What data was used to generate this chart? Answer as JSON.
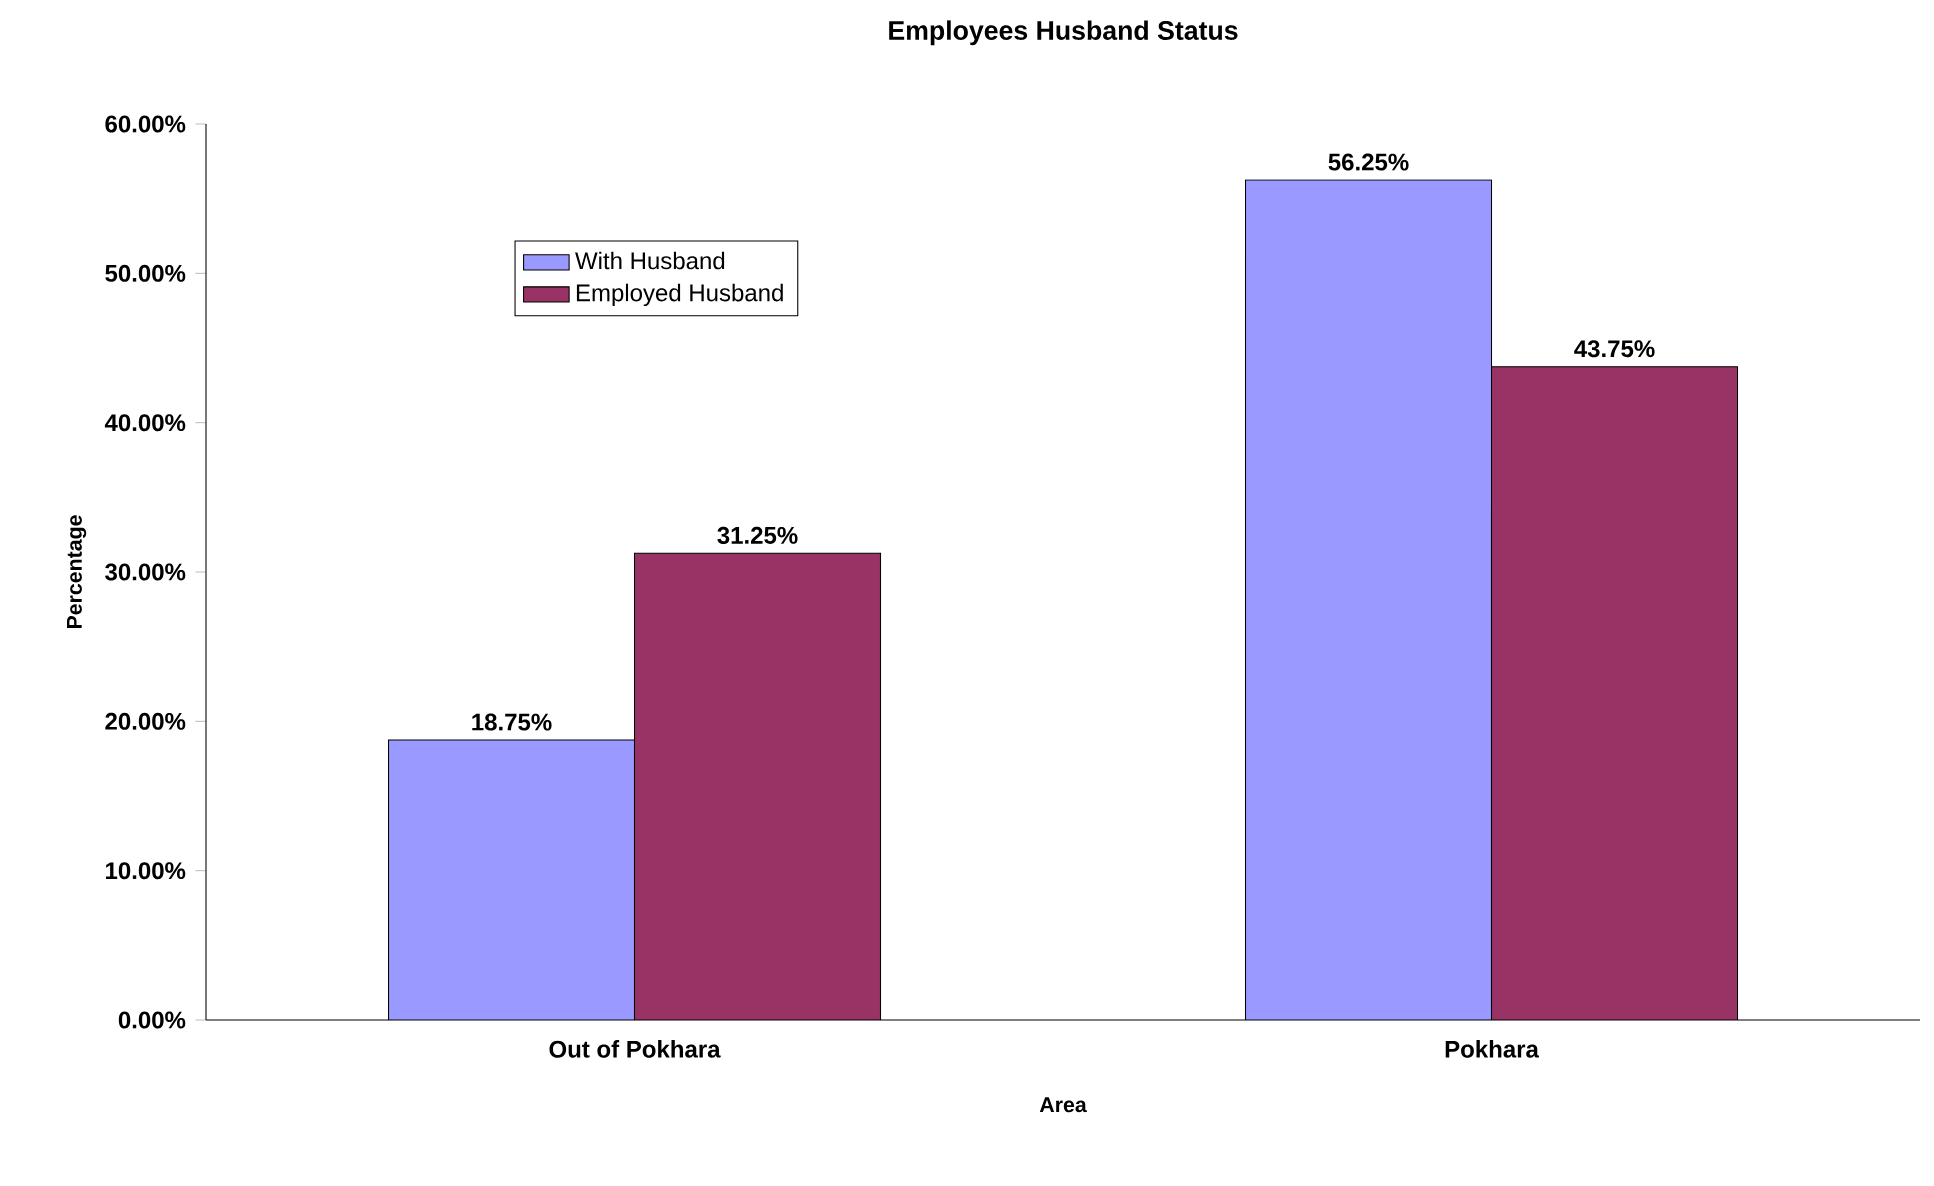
{
  "chart_data": {
    "type": "bar",
    "title": "Employees Husband Status",
    "xlabel": "Area",
    "ylabel": "Percentage",
    "categories": [
      "Out of Pokhara",
      "Pokhara"
    ],
    "series": [
      {
        "name": "With Husband",
        "color": "#9999ff",
        "values": [
          18.75,
          56.25
        ],
        "value_labels": [
          "18.75%",
          "56.25%"
        ]
      },
      {
        "name": "Employed Husband",
        "color": "#993366",
        "values": [
          31.25,
          43.75
        ],
        "value_labels": [
          "31.25%",
          "43.75%"
        ]
      }
    ],
    "ylim": [
      0,
      60
    ],
    "yticks": [
      {
        "value": 0,
        "label": "0.00%"
      },
      {
        "value": 10,
        "label": "10.00%"
      },
      {
        "value": 20,
        "label": "20.00%"
      },
      {
        "value": 30,
        "label": "30.00%"
      },
      {
        "value": 40,
        "label": "40.00%"
      },
      {
        "value": 50,
        "label": "50.00%"
      },
      {
        "value": 60,
        "label": "60.00%"
      }
    ],
    "grid": false,
    "legend": "top left"
  }
}
